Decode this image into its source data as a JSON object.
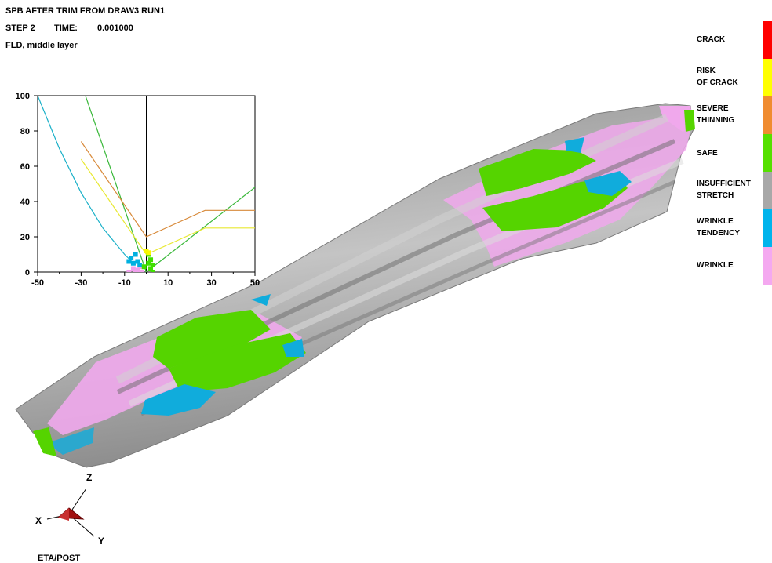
{
  "header": {
    "title": "SPB AFTER TRIM FROM DRAW3 RUN1",
    "step_label": "STEP 2",
    "time_label": "TIME:",
    "time_value": "0.001000",
    "result_label": "FLD, middle layer"
  },
  "chart_data": {
    "type": "line",
    "title": "",
    "xlabel": "",
    "ylabel": "",
    "xlim": [
      -50,
      50
    ],
    "ylim": [
      0,
      100
    ],
    "x_ticks": [
      "-50",
      "-30",
      "-10",
      "10",
      "30",
      "50"
    ],
    "y_ticks": [
      "0",
      "20",
      "40",
      "60",
      "80",
      "100"
    ],
    "grid": false,
    "series": [
      {
        "color": "#1ab0c8",
        "points": [
          [
            -50,
            100
          ],
          [
            -40,
            70
          ],
          [
            -30,
            45
          ],
          [
            -20,
            25
          ],
          [
            -10,
            10
          ],
          [
            -5,
            4
          ]
        ]
      },
      {
        "color": "#3ab83a",
        "points": [
          [
            -28,
            100
          ],
          [
            0,
            0
          ],
          [
            50,
            48
          ]
        ]
      },
      {
        "color": "#d88a3a",
        "points": [
          [
            -30,
            74
          ],
          [
            0,
            20
          ],
          [
            27,
            35
          ],
          [
            50,
            35
          ]
        ]
      },
      {
        "color": "#e8e830",
        "points": [
          [
            -30,
            64
          ],
          [
            0,
            10
          ],
          [
            27,
            25
          ],
          [
            50,
            25
          ]
        ]
      }
    ],
    "scatter_points": [
      {
        "color": "#f0a0ec",
        "points": [
          [
            -8,
            0
          ],
          [
            -6,
            2
          ],
          [
            -4,
            1
          ],
          [
            -3,
            3
          ],
          [
            -2,
            0
          ],
          [
            -5,
            1
          ]
        ]
      },
      {
        "color": "#00b0e0",
        "points": [
          [
            -7,
            8
          ],
          [
            -6,
            5
          ],
          [
            -5,
            10
          ],
          [
            -4,
            6
          ],
          [
            -3,
            4
          ],
          [
            -8,
            6
          ]
        ]
      },
      {
        "color": "#40e000",
        "points": [
          [
            1,
            5
          ],
          [
            2,
            2
          ],
          [
            3,
            0
          ],
          [
            2,
            7
          ],
          [
            1,
            10
          ],
          [
            -1,
            3
          ],
          [
            3,
            4
          ]
        ]
      },
      {
        "color": "#f8f800",
        "points": [
          [
            0,
            12
          ],
          [
            1,
            11
          ]
        ]
      }
    ],
    "vertical_line_x": 0
  },
  "legend": {
    "items": [
      {
        "label": "CRACK",
        "color": "#ff0000"
      },
      {
        "label": "RISK\nOF CRACK",
        "color": "#ffff00"
      },
      {
        "label": "SEVERE\nTHINNING",
        "color": "#f08c30"
      },
      {
        "label": "SAFE",
        "color": "#55e000"
      },
      {
        "label": "INSUFFICIENT\nSTRETCH",
        "color": "#a8a8a8"
      },
      {
        "label": "WRINKLE\nTENDENCY",
        "color": "#00b4ec"
      },
      {
        "label": "WRINKLE",
        "color": "#f4a8f0"
      }
    ]
  },
  "triad": {
    "x_label": "X",
    "y_label": "Y",
    "z_label": "Z"
  },
  "footer": {
    "label": "ETA/POST"
  }
}
